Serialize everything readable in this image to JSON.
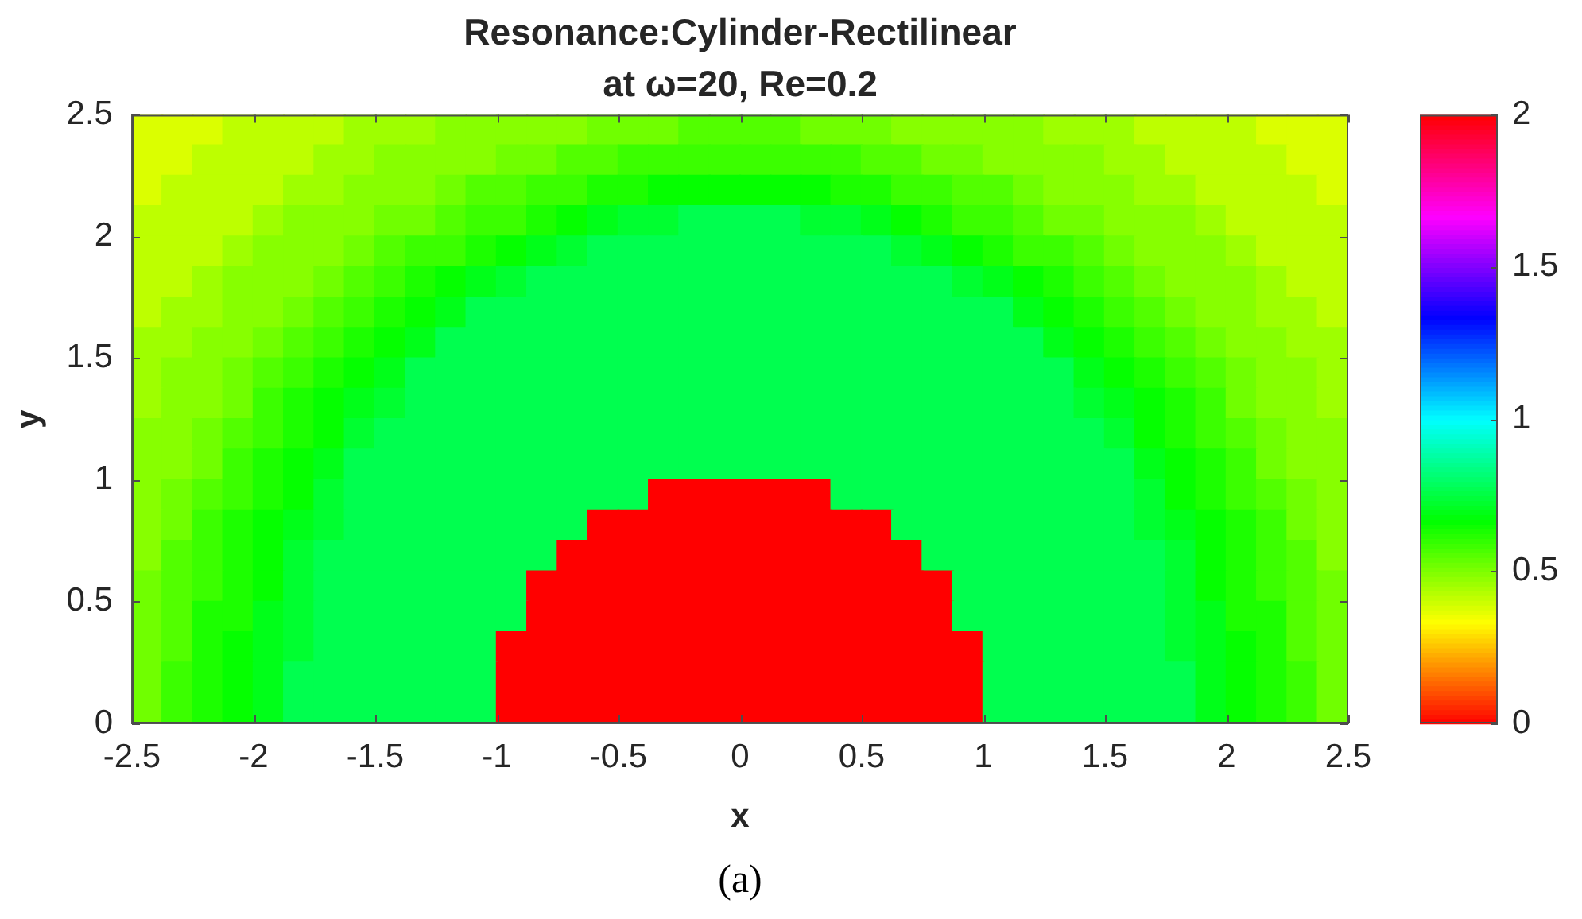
{
  "chart_data": {
    "type": "heatmap",
    "title": "Resonance:Cylinder-Rectilinear",
    "subtitle": "at ω=20, Re=0.2",
    "xlabel": "x",
    "ylabel": "y",
    "annotations": [
      "(a)"
    ],
    "x": [
      -2.4375,
      -2.3125,
      -2.1875,
      -2.0625,
      -1.9375,
      -1.8125,
      -1.6875,
      -1.5625,
      -1.4375,
      -1.3125,
      -1.1875,
      -1.0625,
      -0.9375,
      -0.8125,
      -0.6875,
      -0.5625,
      -0.4375,
      -0.3125,
      -0.1875,
      -0.0625,
      0.0625,
      0.1875,
      0.3125,
      0.4375,
      0.5625,
      0.6875,
      0.8125,
      0.9375,
      1.0625,
      1.1875,
      1.3125,
      1.4375,
      1.5625,
      1.6875,
      1.8125,
      1.9375,
      2.0625,
      2.1875,
      2.3125,
      2.4375
    ],
    "y": [
      2.4375,
      2.3125,
      2.1875,
      2.0625,
      1.9375,
      1.8125,
      1.6875,
      1.5625,
      1.4375,
      1.3125,
      1.1875,
      1.0625,
      0.9375,
      0.8125,
      0.6875,
      0.5625,
      0.4375,
      0.3125,
      0.1875,
      0.0625
    ],
    "xlim": [
      -2.5,
      2.5
    ],
    "xticks": [
      -2.5,
      -2,
      -1.5,
      -1,
      -0.5,
      0,
      0.5,
      1,
      1.5,
      2,
      2.5
    ],
    "ylim": [
      0,
      2.5
    ],
    "yticks": [
      0,
      0.5,
      1,
      1.5,
      2,
      2.5
    ],
    "clim": [
      0,
      2
    ],
    "cticks": [
      0,
      0.5,
      1,
      1.5,
      2
    ],
    "cells": [
      [
        0.38,
        0.38,
        0.38,
        0.42,
        0.42,
        0.42,
        0.42,
        0.46,
        0.46,
        0.46,
        0.49,
        0.49,
        0.49,
        0.49,
        0.49,
        0.52,
        0.52,
        0.52,
        0.56,
        0.56,
        0.56,
        0.56,
        0.52,
        0.52,
        0.52,
        0.49,
        0.49,
        0.49,
        0.49,
        0.49,
        0.46,
        0.46,
        0.46,
        0.42,
        0.42,
        0.42,
        0.42,
        0.38,
        0.38,
        0.38
      ],
      [
        0.38,
        0.38,
        0.42,
        0.42,
        0.42,
        0.42,
        0.46,
        0.46,
        0.49,
        0.49,
        0.49,
        0.49,
        0.52,
        0.52,
        0.56,
        0.56,
        0.59,
        0.59,
        0.59,
        0.59,
        0.59,
        0.59,
        0.59,
        0.59,
        0.56,
        0.56,
        0.52,
        0.52,
        0.49,
        0.49,
        0.49,
        0.49,
        0.46,
        0.46,
        0.42,
        0.42,
        0.42,
        0.42,
        0.38,
        0.38
      ],
      [
        0.38,
        0.42,
        0.42,
        0.42,
        0.42,
        0.46,
        0.46,
        0.49,
        0.49,
        0.49,
        0.52,
        0.56,
        0.56,
        0.59,
        0.59,
        0.63,
        0.63,
        0.66,
        0.66,
        0.66,
        0.66,
        0.66,
        0.66,
        0.63,
        0.63,
        0.59,
        0.59,
        0.56,
        0.56,
        0.52,
        0.49,
        0.49,
        0.49,
        0.46,
        0.46,
        0.42,
        0.42,
        0.42,
        0.42,
        0.38
      ],
      [
        0.42,
        0.42,
        0.42,
        0.42,
        0.46,
        0.49,
        0.49,
        0.49,
        0.52,
        0.52,
        0.56,
        0.59,
        0.59,
        0.63,
        0.66,
        0.7,
        0.73,
        0.73,
        0.77,
        0.77,
        0.77,
        0.77,
        0.73,
        0.73,
        0.7,
        0.66,
        0.63,
        0.59,
        0.59,
        0.56,
        0.52,
        0.52,
        0.49,
        0.49,
        0.49,
        0.46,
        0.42,
        0.42,
        0.42,
        0.42
      ],
      [
        0.42,
        0.42,
        0.42,
        0.46,
        0.49,
        0.49,
        0.49,
        0.52,
        0.56,
        0.59,
        0.59,
        0.63,
        0.66,
        0.7,
        0.73,
        0.77,
        0.77,
        0.77,
        0.77,
        0.77,
        0.77,
        0.77,
        0.77,
        0.77,
        0.77,
        0.73,
        0.7,
        0.66,
        0.63,
        0.59,
        0.59,
        0.56,
        0.52,
        0.49,
        0.49,
        0.49,
        0.46,
        0.42,
        0.42,
        0.42
      ],
      [
        0.42,
        0.42,
        0.46,
        0.49,
        0.49,
        0.49,
        0.52,
        0.56,
        0.59,
        0.63,
        0.66,
        0.7,
        0.73,
        0.77,
        0.77,
        0.77,
        0.77,
        0.77,
        0.77,
        0.77,
        0.77,
        0.77,
        0.77,
        0.77,
        0.77,
        0.77,
        0.77,
        0.73,
        0.7,
        0.66,
        0.63,
        0.59,
        0.56,
        0.52,
        0.49,
        0.49,
        0.49,
        0.46,
        0.42,
        0.42
      ],
      [
        0.42,
        0.46,
        0.46,
        0.49,
        0.49,
        0.52,
        0.56,
        0.59,
        0.63,
        0.66,
        0.7,
        0.77,
        0.77,
        0.77,
        0.77,
        0.77,
        0.77,
        0.77,
        0.77,
        0.77,
        0.77,
        0.77,
        0.77,
        0.77,
        0.77,
        0.77,
        0.77,
        0.77,
        0.77,
        0.7,
        0.66,
        0.63,
        0.59,
        0.56,
        0.52,
        0.49,
        0.49,
        0.46,
        0.46,
        0.42
      ],
      [
        0.46,
        0.46,
        0.49,
        0.49,
        0.52,
        0.56,
        0.59,
        0.63,
        0.66,
        0.7,
        0.77,
        0.77,
        0.77,
        0.77,
        0.77,
        0.77,
        0.77,
        0.77,
        0.77,
        0.77,
        0.77,
        0.77,
        0.77,
        0.77,
        0.77,
        0.77,
        0.77,
        0.77,
        0.77,
        0.77,
        0.7,
        0.66,
        0.63,
        0.59,
        0.56,
        0.52,
        0.49,
        0.49,
        0.46,
        0.46
      ],
      [
        0.46,
        0.49,
        0.49,
        0.52,
        0.56,
        0.59,
        0.63,
        0.66,
        0.7,
        0.77,
        0.77,
        0.77,
        0.77,
        0.77,
        0.77,
        0.77,
        0.77,
        0.77,
        0.77,
        0.77,
        0.77,
        0.77,
        0.77,
        0.77,
        0.77,
        0.77,
        0.77,
        0.77,
        0.77,
        0.77,
        0.77,
        0.7,
        0.66,
        0.63,
        0.59,
        0.56,
        0.52,
        0.49,
        0.49,
        0.46
      ],
      [
        0.46,
        0.49,
        0.49,
        0.52,
        0.59,
        0.63,
        0.66,
        0.7,
        0.73,
        0.77,
        0.77,
        0.77,
        0.77,
        0.77,
        0.77,
        0.77,
        0.77,
        0.77,
        0.77,
        0.77,
        0.77,
        0.77,
        0.77,
        0.77,
        0.77,
        0.77,
        0.77,
        0.77,
        0.77,
        0.77,
        0.77,
        0.73,
        0.7,
        0.66,
        0.63,
        0.59,
        0.52,
        0.49,
        0.49,
        0.46
      ],
      [
        0.49,
        0.49,
        0.52,
        0.56,
        0.59,
        0.63,
        0.66,
        0.73,
        0.77,
        0.77,
        0.77,
        0.77,
        0.77,
        0.77,
        0.77,
        0.77,
        0.77,
        0.77,
        0.77,
        0.77,
        0.77,
        0.77,
        0.77,
        0.77,
        0.77,
        0.77,
        0.77,
        0.77,
        0.77,
        0.77,
        0.77,
        0.77,
        0.73,
        0.66,
        0.63,
        0.59,
        0.56,
        0.52,
        0.49,
        0.49
      ],
      [
        0.49,
        0.49,
        0.52,
        0.59,
        0.63,
        0.66,
        0.7,
        0.77,
        0.77,
        0.77,
        0.77,
        0.77,
        0.77,
        0.77,
        0.77,
        0.77,
        0.77,
        0.77,
        0.77,
        0.77,
        0.77,
        0.77,
        0.77,
        0.77,
        0.77,
        0.77,
        0.77,
        0.77,
        0.77,
        0.77,
        0.77,
        0.77,
        0.77,
        0.7,
        0.66,
        0.63,
        0.59,
        0.52,
        0.49,
        0.49
      ],
      [
        0.49,
        0.52,
        0.56,
        0.59,
        0.63,
        0.66,
        0.73,
        0.77,
        0.77,
        0.77,
        0.77,
        0.77,
        0.77,
        0.77,
        0.77,
        0.77,
        0.77,
        2,
        2,
        2,
        2,
        2,
        2,
        0.77,
        0.77,
        0.77,
        0.77,
        0.77,
        0.77,
        0.77,
        0.77,
        0.77,
        0.77,
        0.73,
        0.66,
        0.63,
        0.59,
        0.56,
        0.52,
        0.49
      ],
      [
        0.49,
        0.52,
        0.59,
        0.63,
        0.66,
        0.7,
        0.73,
        0.77,
        0.77,
        0.77,
        0.77,
        0.77,
        0.77,
        0.77,
        0.77,
        2,
        2,
        2,
        2,
        2,
        2,
        2,
        2,
        2,
        2,
        0.77,
        0.77,
        0.77,
        0.77,
        0.77,
        0.77,
        0.77,
        0.77,
        0.73,
        0.7,
        0.66,
        0.63,
        0.59,
        0.52,
        0.49
      ],
      [
        0.49,
        0.56,
        0.59,
        0.63,
        0.66,
        0.73,
        0.77,
        0.77,
        0.77,
        0.77,
        0.77,
        0.77,
        0.77,
        0.77,
        2,
        2,
        2,
        2,
        2,
        2,
        2,
        2,
        2,
        2,
        2,
        2,
        0.77,
        0.77,
        0.77,
        0.77,
        0.77,
        0.77,
        0.77,
        0.77,
        0.73,
        0.66,
        0.63,
        0.59,
        0.56,
        0.49
      ],
      [
        0.52,
        0.56,
        0.59,
        0.63,
        0.66,
        0.73,
        0.77,
        0.77,
        0.77,
        0.77,
        0.77,
        0.77,
        0.77,
        2,
        2,
        2,
        2,
        2,
        2,
        2,
        2,
        2,
        2,
        2,
        2,
        2,
        2,
        0.77,
        0.77,
        0.77,
        0.77,
        0.77,
        0.77,
        0.77,
        0.73,
        0.66,
        0.63,
        0.59,
        0.56,
        0.52
      ],
      [
        0.52,
        0.56,
        0.63,
        0.63,
        0.7,
        0.73,
        0.77,
        0.77,
        0.77,
        0.77,
        0.77,
        0.77,
        0.77,
        2,
        2,
        2,
        2,
        2,
        2,
        2,
        2,
        2,
        2,
        2,
        2,
        2,
        2,
        0.77,
        0.77,
        0.77,
        0.77,
        0.77,
        0.77,
        0.77,
        0.73,
        0.7,
        0.63,
        0.63,
        0.56,
        0.52
      ],
      [
        0.52,
        0.56,
        0.63,
        0.66,
        0.7,
        0.73,
        0.77,
        0.77,
        0.77,
        0.77,
        0.77,
        0.77,
        2,
        2,
        2,
        2,
        2,
        2,
        2,
        2,
        2,
        2,
        2,
        2,
        2,
        2,
        2,
        2,
        0.77,
        0.77,
        0.77,
        0.77,
        0.77,
        0.77,
        0.73,
        0.7,
        0.66,
        0.63,
        0.56,
        0.52
      ],
      [
        0.52,
        0.59,
        0.63,
        0.66,
        0.7,
        0.77,
        0.77,
        0.77,
        0.77,
        0.77,
        0.77,
        0.77,
        2,
        2,
        2,
        2,
        2,
        2,
        2,
        2,
        2,
        2,
        2,
        2,
        2,
        2,
        2,
        2,
        0.77,
        0.77,
        0.77,
        0.77,
        0.77,
        0.77,
        0.77,
        0.7,
        0.66,
        0.63,
        0.59,
        0.52
      ],
      [
        0.52,
        0.59,
        0.63,
        0.66,
        0.7,
        0.77,
        0.77,
        0.77,
        0.77,
        0.77,
        0.77,
        0.77,
        2,
        2,
        2,
        2,
        2,
        2,
        2,
        2,
        2,
        2,
        2,
        2,
        2,
        2,
        2,
        2,
        0.77,
        0.77,
        0.77,
        0.77,
        0.77,
        0.77,
        0.77,
        0.7,
        0.66,
        0.63,
        0.59,
        0.52
      ]
    ]
  }
}
